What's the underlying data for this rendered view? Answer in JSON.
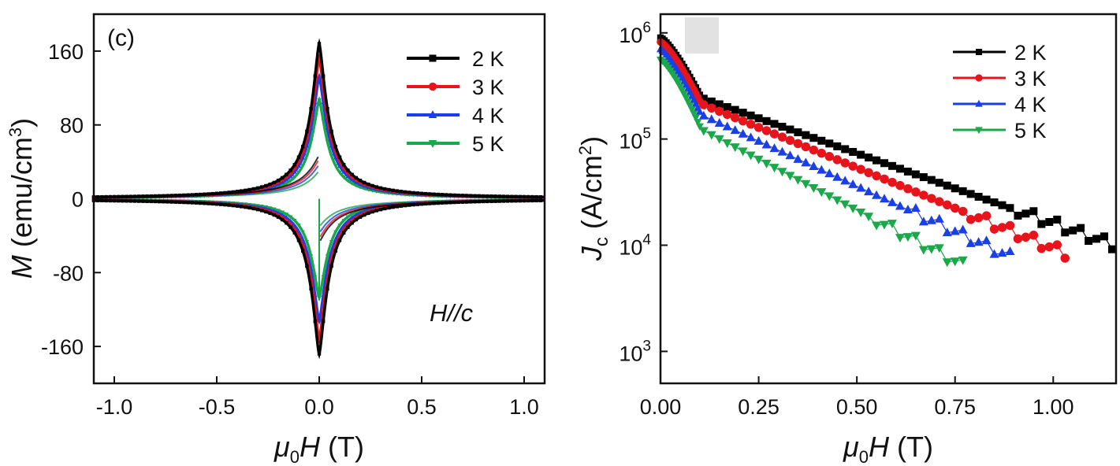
{
  "colors": {
    "2 K": "#000000",
    "3 K": "#e8141c",
    "4 K": "#1a3ee8",
    "5 K": "#1aa84a",
    "placeholder": "#e2e2e2"
  },
  "chart_data": [
    {
      "type": "line",
      "panel_label": "(c)",
      "annotation": "H//c",
      "xlabel": "μ0H (T)",
      "xlabel_parts": {
        "sym": "μ",
        "sub": "0",
        "var": "H",
        "unit": " (T)"
      },
      "ylabel": "M (emu/cm3)",
      "ylabel_parts": {
        "var": "M",
        "unit": " (emu/cm",
        "sup": "3",
        "close": ")"
      },
      "xlim": [
        -1.1,
        1.1
      ],
      "ylim": [
        -200,
        200
      ],
      "xticks": [
        -1.0,
        -0.5,
        0.0,
        0.5,
        1.0
      ],
      "xtick_labels": [
        "-1.0",
        "-0.5",
        "0.0",
        "0.5",
        "1.0"
      ],
      "yticks": [
        160,
        80,
        0,
        -80,
        -160
      ],
      "ytick_labels": [
        "160",
        "80",
        "0",
        "-80",
        "-160"
      ],
      "legend_position": "top-right",
      "series": [
        {
          "name": "2 K",
          "marker": "square",
          "peak": 168
        },
        {
          "name": "3 K",
          "marker": "circle",
          "peak": 152
        },
        {
          "name": "4 K",
          "marker": "triangle-up",
          "peak": 132
        },
        {
          "name": "5 K",
          "marker": "triangle-down",
          "peak": 107
        }
      ]
    },
    {
      "type": "scatter",
      "yscale": "log",
      "xlabel": "μ0H (T)",
      "xlabel_parts": {
        "sym": "μ",
        "sub": "0",
        "var": "H",
        "unit": " (T)"
      },
      "ylabel": "Jc (A/cm2)",
      "ylabel_parts": {
        "var": "J",
        "sub": "c",
        "unit": " (A/cm",
        "sup": "2",
        "close": ")"
      },
      "xlim": [
        0,
        1.16
      ],
      "ylim": [
        500,
        1500000
      ],
      "xticks": [
        0.0,
        0.25,
        0.5,
        0.75,
        1.0
      ],
      "xtick_labels": [
        "0.00",
        "0.25",
        "0.50",
        "0.75",
        "1.00"
      ],
      "ytick_labels": [
        {
          "base": "10",
          "exp": "6"
        },
        {
          "base": "10",
          "exp": "5"
        },
        {
          "base": "10",
          "exp": "4"
        },
        {
          "base": "10",
          "exp": "3"
        }
      ],
      "legend_position": "top-right",
      "series": [
        {
          "name": "2 K",
          "marker": "square",
          "j0": 900000,
          "j1": 240000,
          "slope": 1.32,
          "cutoff": 1.16
        },
        {
          "name": "3 K",
          "marker": "circle",
          "j0": 820000,
          "j1": 210000,
          "slope": 1.52,
          "cutoff": 1.04
        },
        {
          "name": "4 K",
          "marker": "triangle-up",
          "j0": 700000,
          "j1": 165000,
          "slope": 1.7,
          "cutoff": 0.9
        },
        {
          "name": "5 K",
          "marker": "triangle-down",
          "j0": 560000,
          "j1": 120000,
          "slope": 1.92,
          "cutoff": 0.79
        }
      ]
    }
  ]
}
